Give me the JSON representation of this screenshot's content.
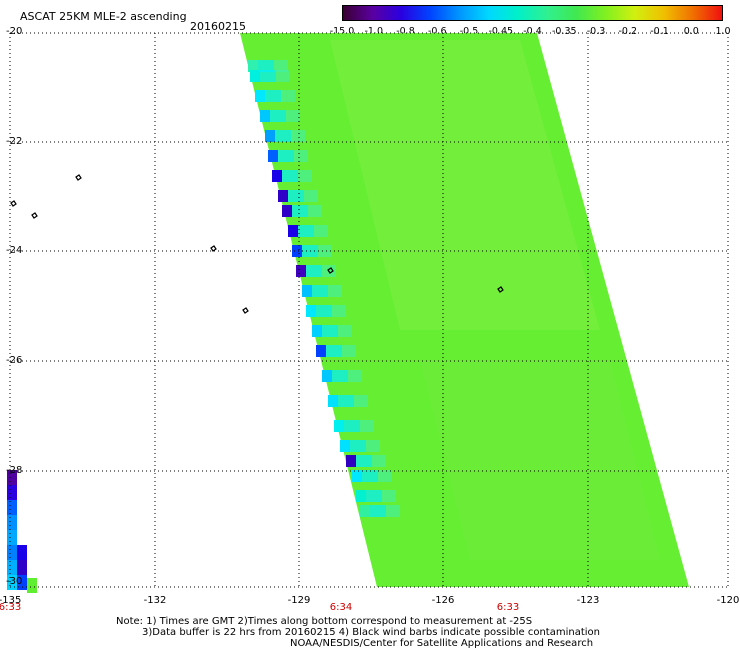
{
  "header": {
    "title": "ASCAT 25KM MLE-2 ascending",
    "date": "20160215"
  },
  "colorbar": {
    "labels": [
      "-15.0",
      "-1.0",
      "-0.8",
      "-0.6",
      "-0.5",
      "-0.45",
      "-0.4",
      "-0.35",
      "-0.3",
      "-0.2",
      "-0.1",
      "0.0",
      "1.0"
    ],
    "colors": [
      "#3a0030",
      "#5a00a0",
      "#2a00e0",
      "#0044ff",
      "#0096ff",
      "#00d8ff",
      "#00f0c8",
      "#30f090",
      "#40e850",
      "#80f020",
      "#d0f010",
      "#f0c000",
      "#f07000",
      "#f01010"
    ]
  },
  "axes": {
    "x_ticks": [
      "-135",
      "-132",
      "-129",
      "-126",
      "-123",
      "-120"
    ],
    "y_ticks": [
      "-20",
      "-22",
      "-24",
      "-26",
      "-28",
      "-30"
    ]
  },
  "times": [
    "6:33",
    "6:34",
    "6:33"
  ],
  "notes": {
    "line1": "Note: 1) Times are GMT 2)Times along bottom correspond to measurement at -25S",
    "line2": "3)Data buffer is 22 hrs from 20160215 4) Black wind barbs indicate possible contamination",
    "line3": "NOAA/NESDIS/Center for Satellite Applications and Research"
  },
  "colors": {
    "swath_green": "#66ee33",
    "edge_cyan": "#00ffff",
    "edge_blue": "#0000ff",
    "time_red": "#cc0000"
  }
}
